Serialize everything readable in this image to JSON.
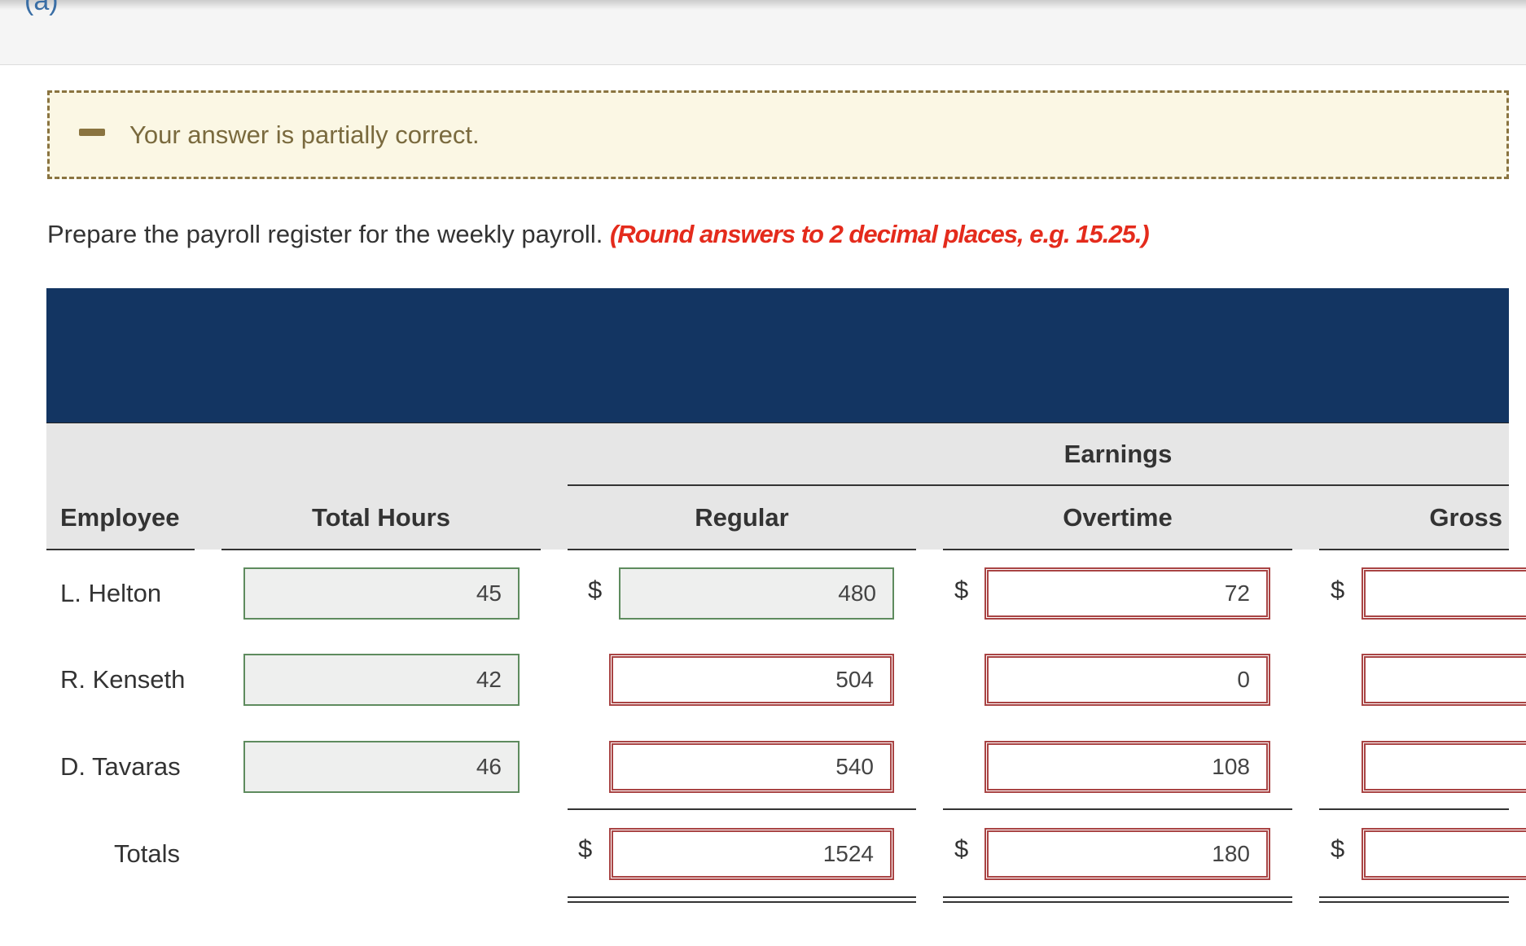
{
  "header": {
    "label": "(a)"
  },
  "feedback": {
    "message": "Your answer is partially correct."
  },
  "instruction": {
    "text": "Prepare the payroll register for the weekly payroll.",
    "note": "(Round answers to 2 decimal places, e.g. 15.25.)"
  },
  "table": {
    "group_header": "Earnings",
    "columns": [
      "Employee",
      "Total Hours",
      "Regular",
      "Overtime",
      "Gross"
    ],
    "currency": "$",
    "rows": [
      {
        "employee": "L. Helton",
        "hours": 45,
        "regular": 480,
        "overtime": 72
      },
      {
        "employee": "R. Kenseth",
        "hours": 42,
        "regular": 504,
        "overtime": 0
      },
      {
        "employee": "D. Tavaras",
        "hours": 46,
        "regular": 540,
        "overtime": 108
      }
    ],
    "totals": {
      "label": "Totals",
      "regular": 1524,
      "overtime": 180
    }
  }
}
